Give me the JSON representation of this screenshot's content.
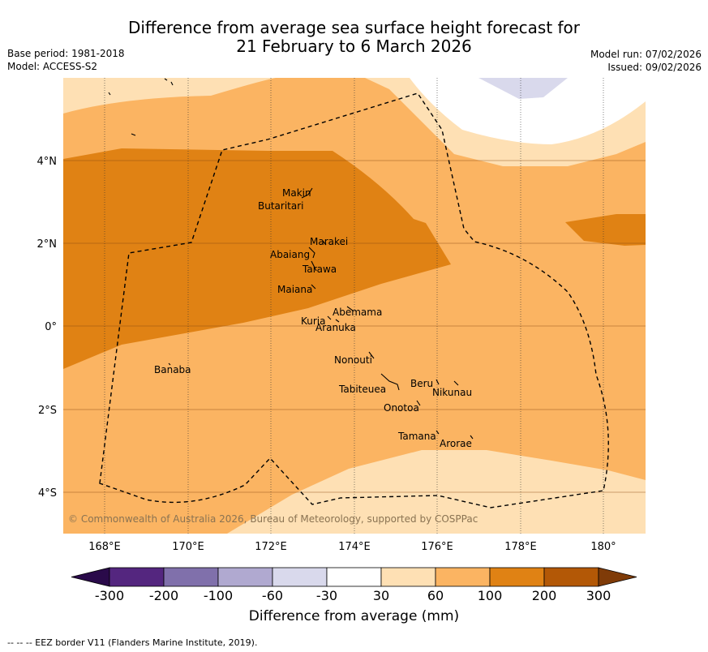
{
  "title": {
    "line1": "Difference from average sea surface height forecast for",
    "line2": "21 February to 6 March 2026"
  },
  "meta_left": {
    "base_period": "Base period: 1981-2018",
    "model": "Model: ACCESS-S2"
  },
  "meta_right": {
    "model_run": "Model run: 07/02/2026",
    "issued": "Issued: 09/02/2026"
  },
  "x_ticks": [
    "168°E",
    "170°E",
    "172°E",
    "174°E",
    "176°E",
    "178°E",
    "180°"
  ],
  "y_ticks": [
    "4°N",
    "2°N",
    "0°",
    "2°S",
    "4°S"
  ],
  "places": [
    "Makin",
    "Butaritari",
    "Marakei",
    "Abaiang",
    "Tarawa",
    "Maiana",
    "Abemama",
    "Kuria",
    "Aranuka",
    "Nonouti",
    "Banaba",
    "Beru",
    "Nikunau",
    "Tabiteuea",
    "Onotoa",
    "Tamana",
    "Arorae"
  ],
  "copyright": "© Commonwealth of Australia 2026, Bureau of Meteorology, supported by COSPPac",
  "colorbar": {
    "boundaries": [
      "-300",
      "-200",
      "-100",
      "-60",
      "-30",
      "30",
      "60",
      "100",
      "200",
      "300"
    ],
    "colors": [
      "#2a0a4a",
      "#54267f",
      "#8070ab",
      "#b0a9d0",
      "#d9d9ec",
      "#ffffff",
      "#fee0b4",
      "#fbb462",
      "#e08214",
      "#b35806",
      "#7f3b08"
    ],
    "title": "Difference from average (mm)"
  },
  "eez_note": "-- -- -- EEZ border V11 (Flanders Marine Institute, 2019)."
}
